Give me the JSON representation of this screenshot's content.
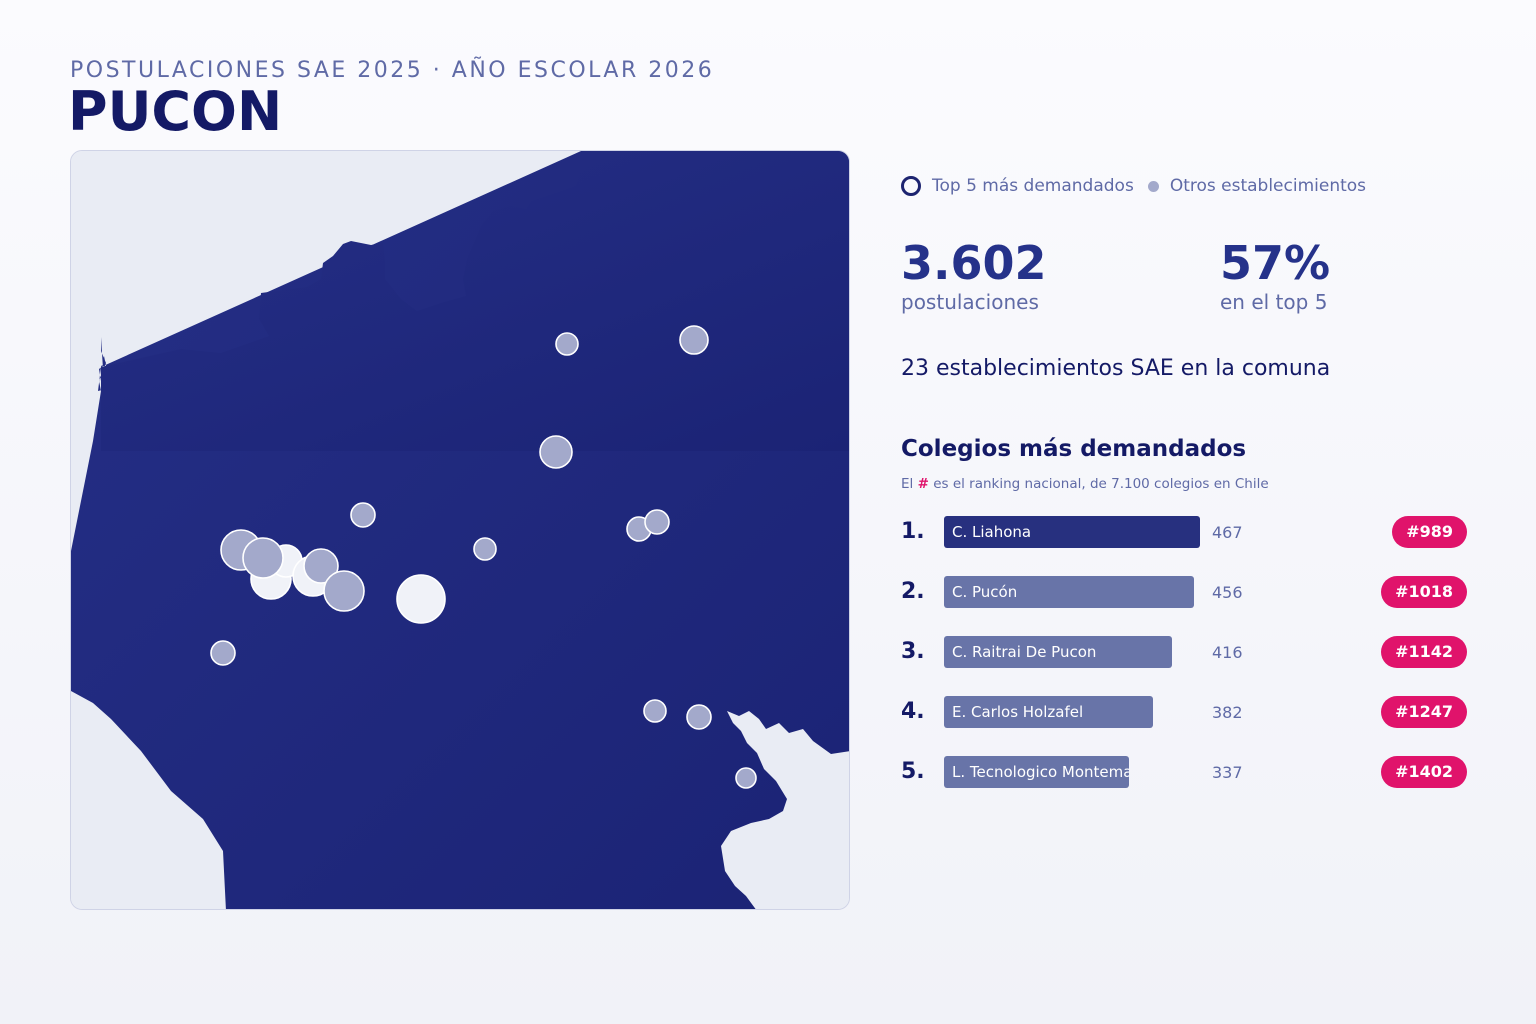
{
  "header": {
    "subtitle": "POSTULACIONES SAE 2025 · AÑO ESCOLAR 2026",
    "title": "PUCON"
  },
  "legend": {
    "top5_label": "Top 5 más demandados",
    "others_label": "Otros establecimientos"
  },
  "stats": {
    "applications_value": "3.602",
    "applications_label": "postulaciones",
    "top5_share_value": "57%",
    "top5_share_label": "en el top 5"
  },
  "establishments_line": "23 establecimientos SAE en la comuna",
  "ranking": {
    "title": "Colegios más demandados",
    "note_prefix": "El",
    "note_hash": "#",
    "note_suffix": "es el ranking nacional, de 7.100 colegios en Chile",
    "max_value": 467,
    "items": [
      {
        "position": "1.",
        "name": "C. Liahona",
        "value": 467,
        "rank": "#989"
      },
      {
        "position": "2.",
        "name": "C. Pucón",
        "value": 456,
        "rank": "#1018"
      },
      {
        "position": "3.",
        "name": "C. Raitrai De Pucon",
        "value": 416,
        "rank": "#1142"
      },
      {
        "position": "4.",
        "name": "E. Carlos Holzafel",
        "value": 382,
        "rank": "#1247"
      },
      {
        "position": "5.",
        "name": "L. Tecnologico Montemar",
        "value": 337,
        "rank": "#1402"
      }
    ]
  },
  "colors": {
    "commune_fill": "#1f2a80",
    "outside_fill": "#e9ecf4",
    "marker_fill": "#a3a9cb",
    "top_marker_fill": "#f0f2f8",
    "badge": "#e0136b",
    "bar_top": "#27307f",
    "bar_rest": "#6874a8"
  }
}
